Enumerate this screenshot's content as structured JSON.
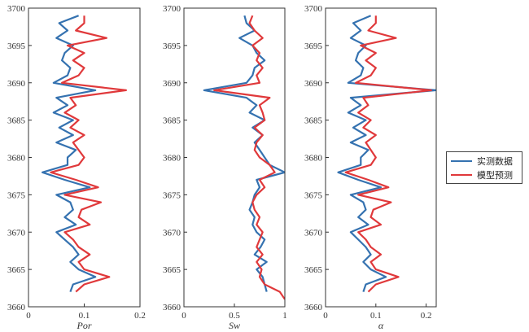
{
  "legend": {
    "measured": "实测数据",
    "predicted": "模型预测"
  },
  "colors": {
    "measured": "#3572b0",
    "predicted": "#e0393b"
  },
  "chart_data": [
    {
      "type": "line",
      "xlabel": "Por",
      "ylabel": "",
      "xlim": [
        0,
        0.2
      ],
      "ylim": [
        3660,
        3700
      ],
      "xticks": [
        0,
        0.1,
        0.2
      ],
      "yticks": [
        3660,
        3665,
        3670,
        3675,
        3680,
        3685,
        3690,
        3695,
        3700
      ],
      "series": [
        {
          "name": "实测数据",
          "depth": [
            3662,
            3663,
            3664,
            3665,
            3666,
            3667,
            3668,
            3669,
            3670,
            3671,
            3672,
            3673,
            3674,
            3675,
            3676,
            3677,
            3678,
            3679,
            3680,
            3681,
            3682,
            3683,
            3684,
            3685,
            3686,
            3687,
            3688,
            3689,
            3690,
            3691,
            3692,
            3693,
            3694,
            3695,
            3696,
            3697,
            3698,
            3699
          ],
          "values": [
            0.075,
            0.08,
            0.12,
            0.09,
            0.075,
            0.09,
            0.08,
            0.065,
            0.05,
            0.085,
            0.065,
            0.08,
            0.075,
            0.05,
            0.11,
            0.065,
            0.025,
            0.07,
            0.07,
            0.085,
            0.05,
            0.08,
            0.055,
            0.08,
            0.045,
            0.07,
            0.05,
            0.12,
            0.045,
            0.07,
            0.075,
            0.06,
            0.065,
            0.08,
            0.05,
            0.07,
            0.055,
            0.09
          ]
        },
        {
          "name": "模型预测",
          "depth": [
            3662,
            3663,
            3664,
            3665,
            3666,
            3667,
            3668,
            3669,
            3670,
            3671,
            3672,
            3673,
            3674,
            3675,
            3676,
            3677,
            3678,
            3679,
            3680,
            3681,
            3682,
            3683,
            3684,
            3685,
            3686,
            3687,
            3688,
            3689,
            3690,
            3691,
            3692,
            3693,
            3694,
            3695,
            3696,
            3697,
            3698,
            3699
          ],
          "values": [
            0.085,
            0.1,
            0.145,
            0.1,
            0.09,
            0.11,
            0.09,
            0.08,
            0.065,
            0.11,
            0.09,
            0.095,
            0.13,
            0.065,
            0.125,
            0.085,
            0.04,
            0.09,
            0.1,
            0.09,
            0.08,
            0.1,
            0.075,
            0.09,
            0.065,
            0.085,
            0.075,
            0.175,
            0.06,
            0.09,
            0.1,
            0.08,
            0.1,
            0.07,
            0.14,
            0.085,
            0.1,
            0.1
          ]
        }
      ]
    },
    {
      "type": "line",
      "xlabel": "Sw",
      "ylabel": "",
      "xlim": [
        0,
        1
      ],
      "ylim": [
        3660,
        3700
      ],
      "xticks": [
        0,
        0.5,
        1
      ],
      "yticks": [
        3660,
        3665,
        3670,
        3675,
        3680,
        3685,
        3690,
        3695,
        3700
      ],
      "series": [
        {
          "name": "实测数据",
          "depth": [
            3662,
            3663,
            3664,
            3665,
            3666,
            3667,
            3668,
            3669,
            3670,
            3671,
            3672,
            3673,
            3674,
            3675,
            3676,
            3677,
            3678,
            3679,
            3680,
            3681,
            3682,
            3683,
            3684,
            3685,
            3686,
            3687,
            3688,
            3689,
            3690,
            3691,
            3692,
            3693,
            3694,
            3695,
            3696,
            3697,
            3698,
            3699
          ],
          "values": [
            0.82,
            0.8,
            0.78,
            0.72,
            0.82,
            0.7,
            0.76,
            0.8,
            0.72,
            0.68,
            0.7,
            0.65,
            0.68,
            0.7,
            0.75,
            0.72,
            1.0,
            0.85,
            0.8,
            0.75,
            0.7,
            0.78,
            0.68,
            0.8,
            0.65,
            0.72,
            0.62,
            0.2,
            0.62,
            0.68,
            0.7,
            0.8,
            0.72,
            0.68,
            0.55,
            0.7,
            0.62,
            0.6
          ]
        },
        {
          "name": "模型预测",
          "depth": [
            3661,
            3662,
            3663,
            3664,
            3665,
            3666,
            3667,
            3668,
            3669,
            3670,
            3671,
            3672,
            3673,
            3674,
            3675,
            3676,
            3677,
            3678,
            3679,
            3680,
            3681,
            3682,
            3683,
            3684,
            3685,
            3686,
            3687,
            3688,
            3689,
            3690,
            3691,
            3692,
            3693,
            3694,
            3695,
            3696,
            3697,
            3698,
            3699
          ],
          "values": [
            1.0,
            0.95,
            0.8,
            0.75,
            0.77,
            0.72,
            0.78,
            0.72,
            0.75,
            0.78,
            0.72,
            0.75,
            0.7,
            0.68,
            0.72,
            0.8,
            0.75,
            0.9,
            0.85,
            0.75,
            0.7,
            0.72,
            0.78,
            0.7,
            0.8,
            0.78,
            0.75,
            0.85,
            0.3,
            0.75,
            0.72,
            0.78,
            0.72,
            0.75,
            0.68,
            0.78,
            0.7,
            0.65,
            0.68
          ]
        }
      ]
    },
    {
      "type": "line",
      "xlabel": "α",
      "ylabel": "",
      "xlim": [
        0,
        0.22
      ],
      "ylim": [
        3660,
        3700
      ],
      "xticks": [
        0,
        0.1,
        0.2
      ],
      "yticks": [
        3660,
        3665,
        3670,
        3675,
        3680,
        3685,
        3690,
        3695,
        3700
      ],
      "series": [
        {
          "name": "实测数据",
          "depth": [
            3662,
            3663,
            3664,
            3665,
            3666,
            3667,
            3668,
            3669,
            3670,
            3671,
            3672,
            3673,
            3674,
            3675,
            3676,
            3677,
            3678,
            3679,
            3680,
            3681,
            3682,
            3683,
            3684,
            3685,
            3686,
            3687,
            3688,
            3689,
            3690,
            3691,
            3692,
            3693,
            3694,
            3695,
            3696,
            3697,
            3698,
            3699
          ],
          "values": [
            0.075,
            0.08,
            0.12,
            0.09,
            0.075,
            0.09,
            0.08,
            0.065,
            0.05,
            0.085,
            0.065,
            0.08,
            0.075,
            0.05,
            0.11,
            0.065,
            0.025,
            0.07,
            0.07,
            0.085,
            0.05,
            0.08,
            0.055,
            0.08,
            0.045,
            0.07,
            0.05,
            0.22,
            0.045,
            0.07,
            0.075,
            0.06,
            0.065,
            0.08,
            0.05,
            0.07,
            0.055,
            0.09
          ]
        },
        {
          "name": "模型预测",
          "depth": [
            3662,
            3663,
            3664,
            3665,
            3666,
            3667,
            3668,
            3669,
            3670,
            3671,
            3672,
            3673,
            3674,
            3675,
            3676,
            3677,
            3678,
            3679,
            3680,
            3681,
            3682,
            3683,
            3684,
            3685,
            3686,
            3687,
            3688,
            3689,
            3690,
            3691,
            3692,
            3693,
            3694,
            3695,
            3696,
            3697,
            3698,
            3699
          ],
          "values": [
            0.085,
            0.1,
            0.145,
            0.1,
            0.09,
            0.11,
            0.09,
            0.08,
            0.065,
            0.11,
            0.09,
            0.095,
            0.13,
            0.065,
            0.125,
            0.085,
            0.04,
            0.09,
            0.1,
            0.09,
            0.08,
            0.1,
            0.075,
            0.09,
            0.065,
            0.085,
            0.075,
            0.21,
            0.06,
            0.09,
            0.1,
            0.08,
            0.1,
            0.07,
            0.14,
            0.085,
            0.1,
            0.1
          ]
        }
      ]
    }
  ]
}
